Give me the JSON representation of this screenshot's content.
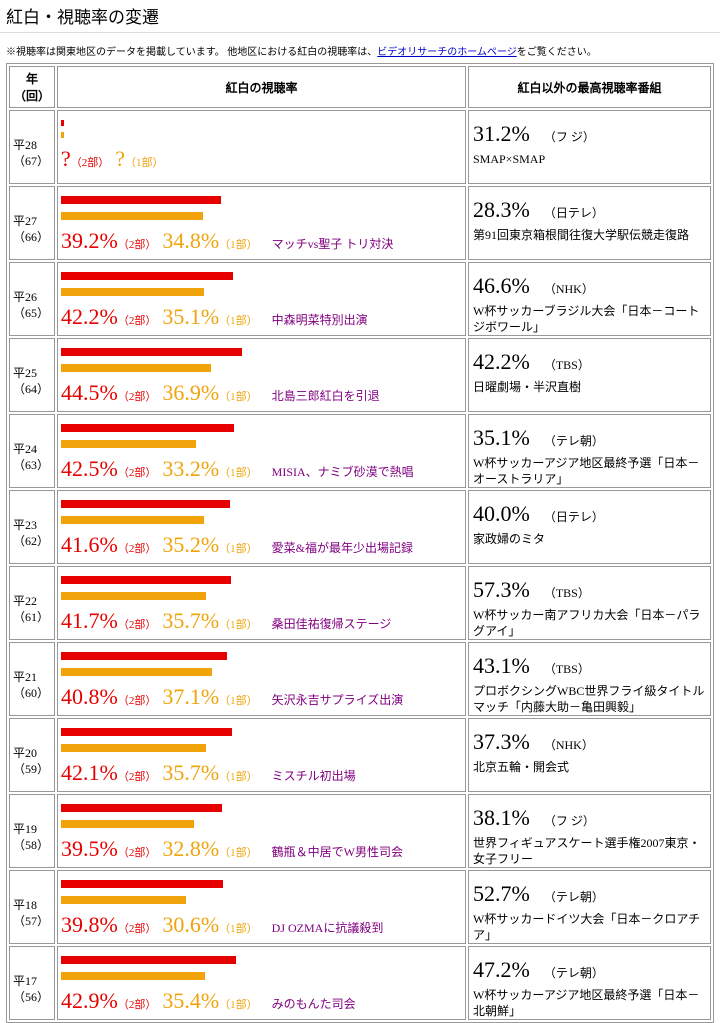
{
  "header": {
    "title": "紅白・視聴率の変遷",
    "note_prefix": "※視聴率は関東地区のデータを掲載しています。 他地区における紅白の視聴率は、",
    "note_link": "ビデオリサーチのホームページ",
    "note_suffix": "をご覧ください。"
  },
  "table": {
    "col_year": "年",
    "col_round": "（回）",
    "col_kohaku": "紅白の視聴率",
    "col_top": "紅白以外の最高視聴率番組",
    "part2_tag": "（2部）",
    "part1_tag": "（1部）",
    "part2_color": "#e60000",
    "part1_color": "#f0a30a",
    "rows": [
      {
        "year": "平28",
        "round": "（67）",
        "part2": null,
        "part2_label": "?",
        "part1": null,
        "part1_label": "?",
        "top_rating": "31.2%",
        "station": "（フ ジ）",
        "top_program": "SMAP×SMAP"
      },
      {
        "year": "平27",
        "round": "（66）",
        "part2": 39.2,
        "part2_label": "39.2%",
        "part1": 34.8,
        "part1_label": "34.8%",
        "note": "マッチvs聖子 トリ対決",
        "top_rating": "28.3%",
        "station": "（日テレ）",
        "top_program": "第91回東京箱根間往復大学駅伝競走復路"
      },
      {
        "year": "平26",
        "round": "（65）",
        "part2": 42.2,
        "part2_label": "42.2%",
        "part1": 35.1,
        "part1_label": "35.1%",
        "note": "中森明菜特別出演",
        "top_rating": "46.6%",
        "station": "（NHK）",
        "top_program": "W杯サッカーブラジル大会「日本－コートジボワール」"
      },
      {
        "year": "平25",
        "round": "（64）",
        "part2": 44.5,
        "part2_label": "44.5%",
        "part1": 36.9,
        "part1_label": "36.9%",
        "note": "北島三郎紅白を引退",
        "top_rating": "42.2%",
        "station": "（TBS）",
        "top_program": "日曜劇場・半沢直樹"
      },
      {
        "year": "平24",
        "round": "（63）",
        "part2": 42.5,
        "part2_label": "42.5%",
        "part1": 33.2,
        "part1_label": "33.2%",
        "note": "MISIA、ナミブ砂漠で熱唱",
        "top_rating": "35.1%",
        "station": "（テレ朝）",
        "top_program": "W杯サッカーアジア地区最終予選「日本－オーストラリア」"
      },
      {
        "year": "平23",
        "round": "（62）",
        "part2": 41.6,
        "part2_label": "41.6%",
        "part1": 35.2,
        "part1_label": "35.2%",
        "note": "愛菜&福が最年少出場記録",
        "top_rating": "40.0%",
        "station": "（日テレ）",
        "top_program": "家政婦のミタ"
      },
      {
        "year": "平22",
        "round": "（61）",
        "part2": 41.7,
        "part2_label": "41.7%",
        "part1": 35.7,
        "part1_label": "35.7%",
        "note": "桑田佳祐復帰ステージ",
        "top_rating": "57.3%",
        "station": "（TBS）",
        "top_program": "W杯サッカー南アフリカ大会「日本－パラグアイ」"
      },
      {
        "year": "平21",
        "round": "（60）",
        "part2": 40.8,
        "part2_label": "40.8%",
        "part1": 37.1,
        "part1_label": "37.1%",
        "note": "矢沢永吉サプライズ出演",
        "top_rating": "43.1%",
        "station": "（TBS）",
        "top_program": "プロボクシングWBC世界フライ級タイトルマッチ「内藤大助－亀田興毅」"
      },
      {
        "year": "平20",
        "round": "（59）",
        "part2": 42.1,
        "part2_label": "42.1%",
        "part1": 35.7,
        "part1_label": "35.7%",
        "note": "ミスチル初出場",
        "top_rating": "37.3%",
        "station": "（NHK）",
        "top_program": "北京五輪・開会式"
      },
      {
        "year": "平19",
        "round": "（58）",
        "part2": 39.5,
        "part2_label": "39.5%",
        "part1": 32.8,
        "part1_label": "32.8%",
        "note": "鶴瓶＆中居でW男性司会",
        "top_rating": "38.1%",
        "station": "（フ ジ）",
        "top_program": "世界フィギュアスケート選手権2007東京・女子フリー"
      },
      {
        "year": "平18",
        "round": "（57）",
        "part2": 39.8,
        "part2_label": "39.8%",
        "part1": 30.6,
        "part1_label": "30.6%",
        "note": "DJ OZMAに抗議殺到",
        "top_rating": "52.7%",
        "station": "（テレ朝）",
        "top_program": "W杯サッカードイツ大会「日本－クロアチア」"
      },
      {
        "year": "平17",
        "round": "（56）",
        "part2": 42.9,
        "part2_label": "42.9%",
        "part1": 35.4,
        "part1_label": "35.4%",
        "note": "みのもんた司会",
        "top_rating": "47.2%",
        "station": "（テレ朝）",
        "top_program": "W杯サッカーアジア地区最終予選「日本－北朝鮮」"
      }
    ]
  }
}
